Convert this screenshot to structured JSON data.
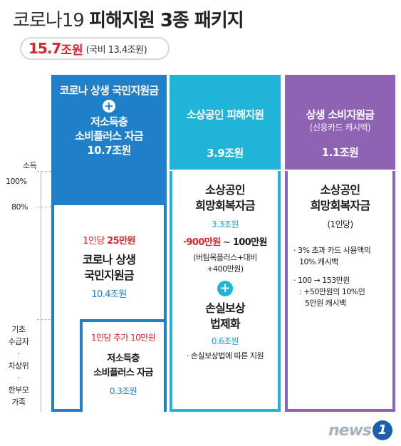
{
  "title": {
    "thin": "코로나19 ",
    "bold": "피해지원 3종 패키지"
  },
  "total": {
    "amount": "15.7",
    "unit": "조원",
    "detail": "(국비 13.4조원)"
  },
  "axis": {
    "label": "소득",
    "p100": "100%",
    "p80": "80%",
    "bottom": [
      "기초",
      "수급자",
      "·",
      "차상위",
      "·",
      "한부모",
      "가족"
    ]
  },
  "col1": {
    "head_line1": "코로나 상생 국민지원금",
    "plus": "+",
    "head_line2": "저소득층",
    "head_line3": "소비플러스 자금",
    "head_amount": "10.7조원",
    "per_person": "1인당 ",
    "per_person_amt": "25만원",
    "name1": "코로나 상생",
    "name2": "국민지원금",
    "amount": "10.4조원",
    "inner_per": "1인당 추가 10만원",
    "inner_name1": "저소득층",
    "inner_name2": "소비플러스 자금",
    "inner_amount": "0.3조원"
  },
  "col2": {
    "head_title": "소상공인 피해지원",
    "head_amount": "3.9조원",
    "name1": "소상공인",
    "name2": "희망회복자금",
    "amount": "3.3조원",
    "range_low": "900만원",
    "range_sep": " ~ ",
    "range_high": "100만원",
    "note1": "(버팀목플러스+대비",
    "note2": "+400만원)",
    "plus": "+",
    "name3": "손실보상",
    "name4": "법제화",
    "amount2": "0.6조원",
    "bullet": "· 손실보상법에 따른 지원"
  },
  "col3": {
    "head_title": "상생 소비지원금",
    "head_sub": "(신용카드 캐시백)",
    "head_amount": "1.1조원",
    "name1": "소상공인",
    "name2": "희망회복자금",
    "per": "(1인당)",
    "b1a": "· 3% 초과 카드 사용액의",
    "b1b": "10% 캐시백",
    "b2a": "· 100 → 153만원",
    "b2b": ": +50만원의 10%인",
    "b2c": "5만원 캐시백"
  },
  "logo": {
    "word": "news",
    "badge": "1"
  },
  "colors": {
    "col1": "#1f7fc9",
    "col2": "#20b4d9",
    "col3": "#8e63b4",
    "accent_red": "#d8262e"
  }
}
